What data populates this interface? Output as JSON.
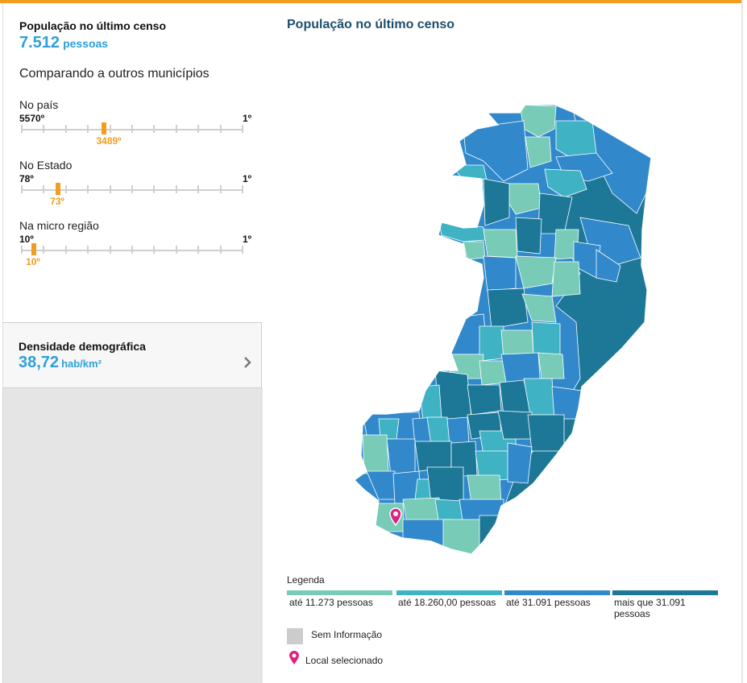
{
  "population": {
    "title": "População no último censo",
    "value": "7.512",
    "unit": "pessoas"
  },
  "compare": {
    "title": "Comparando a outros municípios",
    "ranks": [
      {
        "label": "No país",
        "low": "5570º",
        "high": "1º",
        "value": "3489º",
        "fraction": 0.374
      },
      {
        "label": "No Estado",
        "low": "78º",
        "high": "1º",
        "value": "73º",
        "fraction": 0.165
      },
      {
        "label": "Na micro região",
        "low": "10º",
        "high": "1º",
        "value": "10º",
        "fraction": 0.055
      }
    ]
  },
  "density": {
    "title": "Densidade demográfica",
    "value": "38,72",
    "unit": "hab/km²"
  },
  "map": {
    "title": "População no último censo",
    "colors": {
      "c1": "#77cbb7",
      "c2": "#3fb3c4",
      "c3": "#3189cc",
      "c4": "#1d7898",
      "pin": "#e0207e",
      "accent": "#f29d1e"
    }
  },
  "legend": {
    "title": "Legenda",
    "items": [
      {
        "label": "até 11.273 pessoas",
        "color": "#77cbb7"
      },
      {
        "label": "até 18.260,00 pessoas",
        "color": "#3fb3c4"
      },
      {
        "label": "até 31.091 pessoas",
        "color": "#3189cc"
      },
      {
        "label": "mais que 31.091 pessoas",
        "color": "#1d7898"
      }
    ],
    "no_info": "Sem Informação",
    "selected": "Local selecionado"
  }
}
